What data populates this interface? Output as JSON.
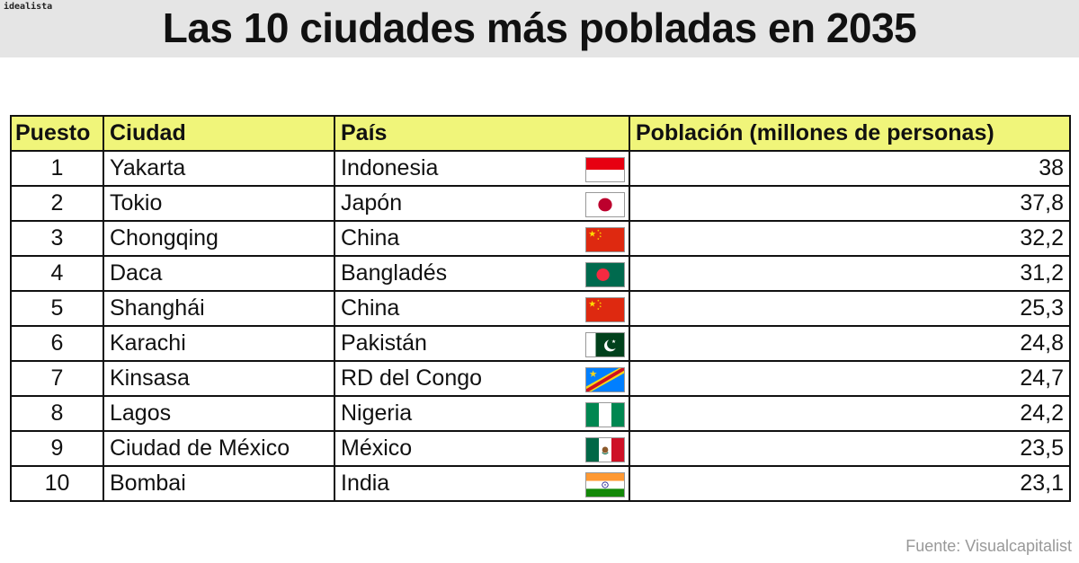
{
  "brand": "idealista",
  "title": "Las 10 ciudades más pobladas en 2035",
  "source": "Fuente: Visualcapitalist",
  "chart_data": {
    "type": "table",
    "title": "Las 10 ciudades más pobladas en 2035",
    "columns": [
      "Puesto",
      "Ciudad",
      "País",
      "Población (millones de personas)"
    ],
    "rows": [
      {
        "rank": "1",
        "city": "Yakarta",
        "country": "Indonesia",
        "flag": "indonesia-flag",
        "population": "38"
      },
      {
        "rank": "2",
        "city": "Tokio",
        "country": "Japón",
        "flag": "japan-flag",
        "population": "37,8"
      },
      {
        "rank": "3",
        "city": "Chongqing",
        "country": "China",
        "flag": "china-flag",
        "population": "32,2"
      },
      {
        "rank": "4",
        "city": "Daca",
        "country": "Bangladés",
        "flag": "bangladesh-flag",
        "population": "31,2"
      },
      {
        "rank": "5",
        "city": "Shanghái",
        "country": "China",
        "flag": "china-flag",
        "population": "25,3"
      },
      {
        "rank": "6",
        "city": "Karachi",
        "country": "Pakistán",
        "flag": "pakistan-flag",
        "population": "24,8"
      },
      {
        "rank": "7",
        "city": "Kinsasa",
        "country": "RD del Congo",
        "flag": "drcongo-flag",
        "population": "24,7"
      },
      {
        "rank": "8",
        "city": "Lagos",
        "country": "Nigeria",
        "flag": "nigeria-flag",
        "population": "24,2"
      },
      {
        "rank": "9",
        "city": "Ciudad de México",
        "country": "México",
        "flag": "mexico-flag",
        "population": "23,5"
      },
      {
        "rank": "10",
        "city": "Bombai",
        "country": "India",
        "flag": "india-flag",
        "population": "23,1"
      }
    ]
  },
  "colors": {
    "header_background": "#f0f57a",
    "title_bar_background": "#e5e5e5",
    "source_text": "#999999"
  }
}
